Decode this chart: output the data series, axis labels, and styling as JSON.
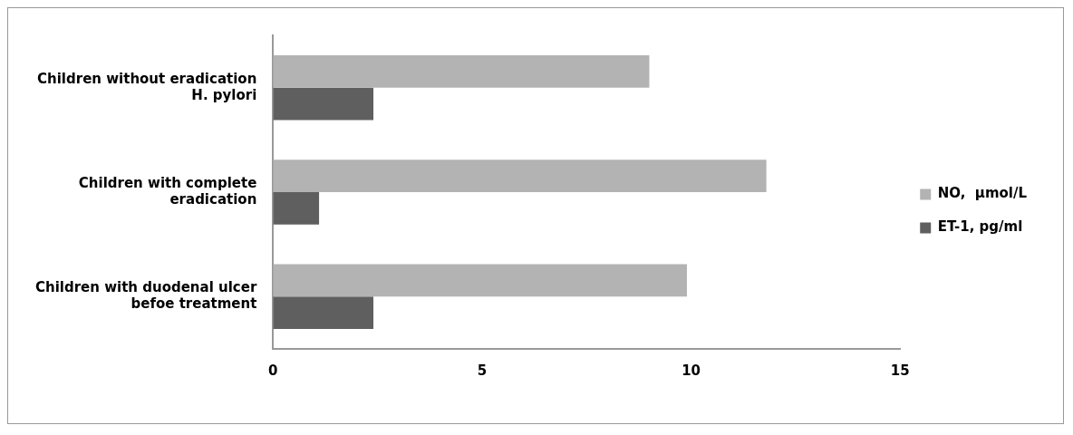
{
  "chart_data": {
    "type": "bar",
    "orientation": "horizontal",
    "categories": [
      "Children without eradication H. pylori",
      "Children with complete eradication",
      "Children with duodenal ulcer befoe treatment"
    ],
    "series": [
      {
        "name": "NO,  µmol/L",
        "color": "#b3b3b3",
        "values": [
          9.0,
          11.8,
          9.9
        ]
      },
      {
        "name": "ET-1, pg/ml",
        "color": "#5f5f5f",
        "values": [
          2.4,
          1.1,
          2.4
        ]
      }
    ],
    "xlim": [
      0,
      15
    ],
    "xticks": [
      0,
      5,
      10,
      15
    ],
    "grid": false,
    "legend": "right"
  }
}
